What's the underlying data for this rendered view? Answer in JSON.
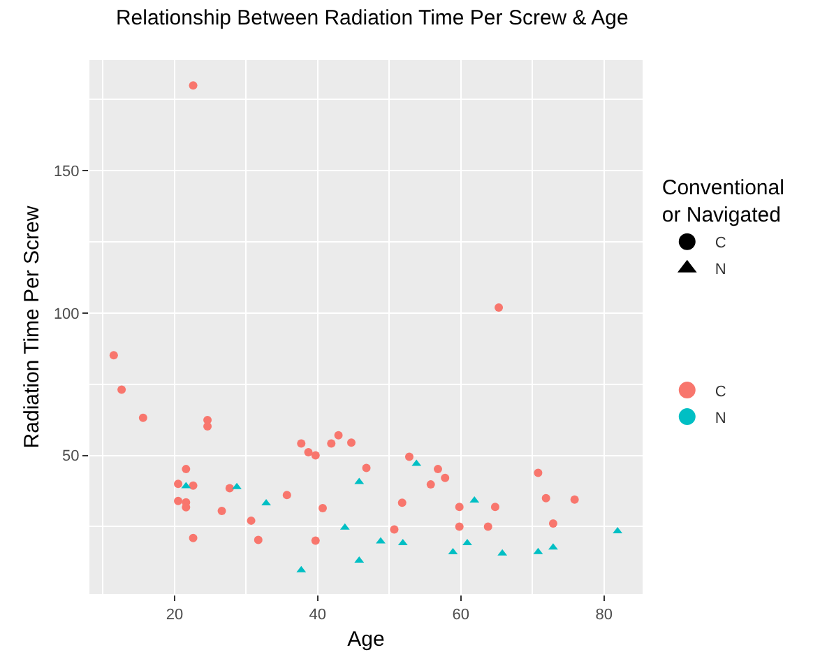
{
  "chart_data": {
    "type": "scatter",
    "title": "Relationship Between Radiation Time Per Screw & Age",
    "xlabel": "Age",
    "ylabel": "Radiation Time Per Screw",
    "legend_title": "Conventional or Navigated",
    "xlim": [
      8.1,
      85.4
    ],
    "ylim": [
      1.3,
      188.8
    ],
    "xticks": [
      20,
      40,
      60,
      80
    ],
    "yticks": [
      50,
      100,
      150
    ],
    "grid": true,
    "legend": "right",
    "series": [
      {
        "name": "C",
        "color": "#f8766d",
        "marker": "circle",
        "x": [
          11.5,
          12.6,
          15.6,
          24.6,
          24.6,
          20.5,
          20.5,
          21.6,
          21.6,
          21.6,
          22.6,
          22.6,
          26.6,
          27.7,
          30.7,
          31.7,
          35.7,
          37.7,
          38.7,
          39.7,
          40.7,
          39.7,
          41.9,
          42.9,
          44.7,
          46.8,
          52.8,
          56.8,
          57.8,
          55.8,
          51.8,
          50.7,
          59.8,
          59.8,
          64.8,
          63.8,
          70.8,
          71.9,
          75.9,
          72.9,
          65.3,
          22.6
        ],
        "values": [
          85.2,
          73.1,
          63.2,
          62.4,
          60.2,
          40.0,
          34.0,
          45.2,
          33.5,
          31.8,
          39.4,
          21.0,
          30.5,
          38.5,
          27.1,
          20.3,
          36.1,
          54.2,
          51.1,
          50.0,
          31.5,
          20.1,
          54.2,
          57.1,
          54.5,
          45.6,
          49.5,
          45.2,
          42.1,
          39.8,
          33.4,
          24.0,
          31.9,
          25.0,
          31.9,
          25.0,
          43.9,
          35.0,
          34.5,
          26.1,
          101.9,
          179.9
        ]
      },
      {
        "name": "N",
        "color": "#00bfc4",
        "marker": "triangle",
        "x": [
          21.6,
          28.7,
          32.8,
          37.7,
          43.8,
          45.8,
          45.8,
          48.8,
          51.9,
          53.8,
          58.9,
          60.9,
          61.9,
          65.8,
          70.8,
          72.9,
          81.9
        ],
        "values": [
          39.2,
          38.9,
          33.2,
          9.7,
          24.7,
          40.7,
          13.1,
          19.8,
          19.2,
          47.1,
          16.0,
          19.2,
          34.2,
          15.6,
          16.1,
          17.7,
          23.4
        ]
      }
    ]
  }
}
